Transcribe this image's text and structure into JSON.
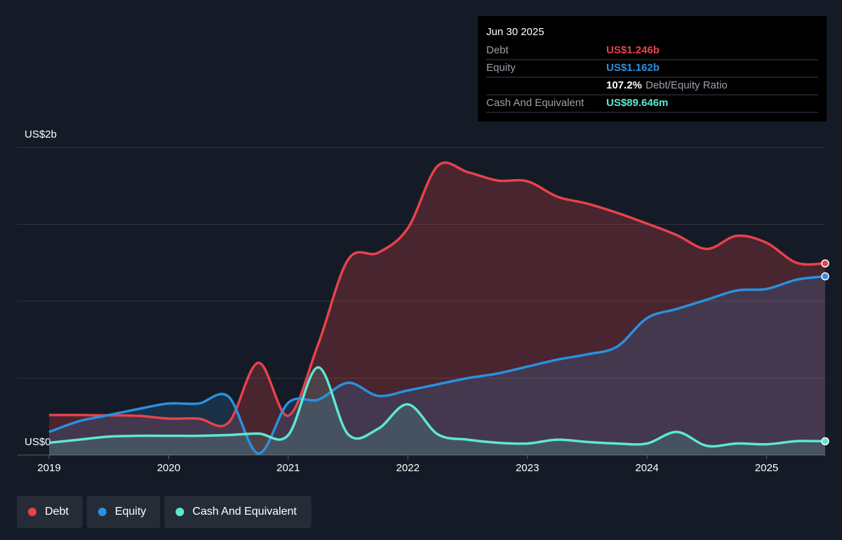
{
  "chart_data": {
    "type": "line",
    "x": [
      2019,
      2019.25,
      2019.5,
      2019.75,
      2020,
      2020.25,
      2020.5,
      2020.75,
      2021,
      2021.25,
      2021.5,
      2021.75,
      2022,
      2022.25,
      2022.5,
      2022.75,
      2023,
      2023.25,
      2023.5,
      2023.75,
      2024,
      2024.25,
      2024.5,
      2024.75,
      2025,
      2025.25,
      2025.49
    ],
    "series": [
      {
        "name": "Debt",
        "color": "#e8424a",
        "values": [
          0.26,
          0.26,
          0.258,
          0.255,
          0.237,
          0.237,
          0.21,
          0.6,
          0.256,
          0.72,
          1.27,
          1.315,
          1.475,
          1.88,
          1.84,
          1.785,
          1.78,
          1.68,
          1.635,
          1.575,
          1.505,
          1.43,
          1.34,
          1.425,
          1.38,
          1.25,
          1.246
        ]
      },
      {
        "name": "Equity",
        "color": "#2b90e0",
        "values": [
          0.15,
          0.22,
          0.26,
          0.3,
          0.335,
          0.335,
          0.38,
          0.01,
          0.34,
          0.36,
          0.47,
          0.385,
          0.42,
          0.46,
          0.5,
          0.53,
          0.575,
          0.62,
          0.655,
          0.705,
          0.89,
          0.95,
          1.01,
          1.07,
          1.08,
          1.14,
          1.162
        ]
      },
      {
        "name": "Cash And Equivalent",
        "color": "#5de8d0",
        "values": [
          0.08,
          0.1,
          0.12,
          0.125,
          0.125,
          0.125,
          0.13,
          0.14,
          0.13,
          0.57,
          0.135,
          0.17,
          0.33,
          0.135,
          0.1,
          0.08,
          0.075,
          0.1,
          0.085,
          0.075,
          0.075,
          0.15,
          0.06,
          0.075,
          0.07,
          0.09,
          0.0896
        ]
      }
    ],
    "xlim": [
      2018.736,
      2025.49
    ],
    "xticks": [
      2019,
      2020,
      2021,
      2022,
      2023,
      2024,
      2025
    ],
    "ylim": [
      0,
      2
    ],
    "yticks": [
      {
        "value": 0,
        "label": "US$0"
      },
      {
        "value": 2,
        "label": "US$2b"
      }
    ],
    "ygrid": [
      0,
      0.5,
      1,
      1.5,
      2
    ],
    "tooltip": {
      "date": "Jun 30 2025",
      "values": [
        "US$1.246b",
        "US$1.162b",
        "US$89.646m"
      ],
      "ratio": "107.2%",
      "ratio_label": "Debt/Equity Ratio"
    }
  }
}
